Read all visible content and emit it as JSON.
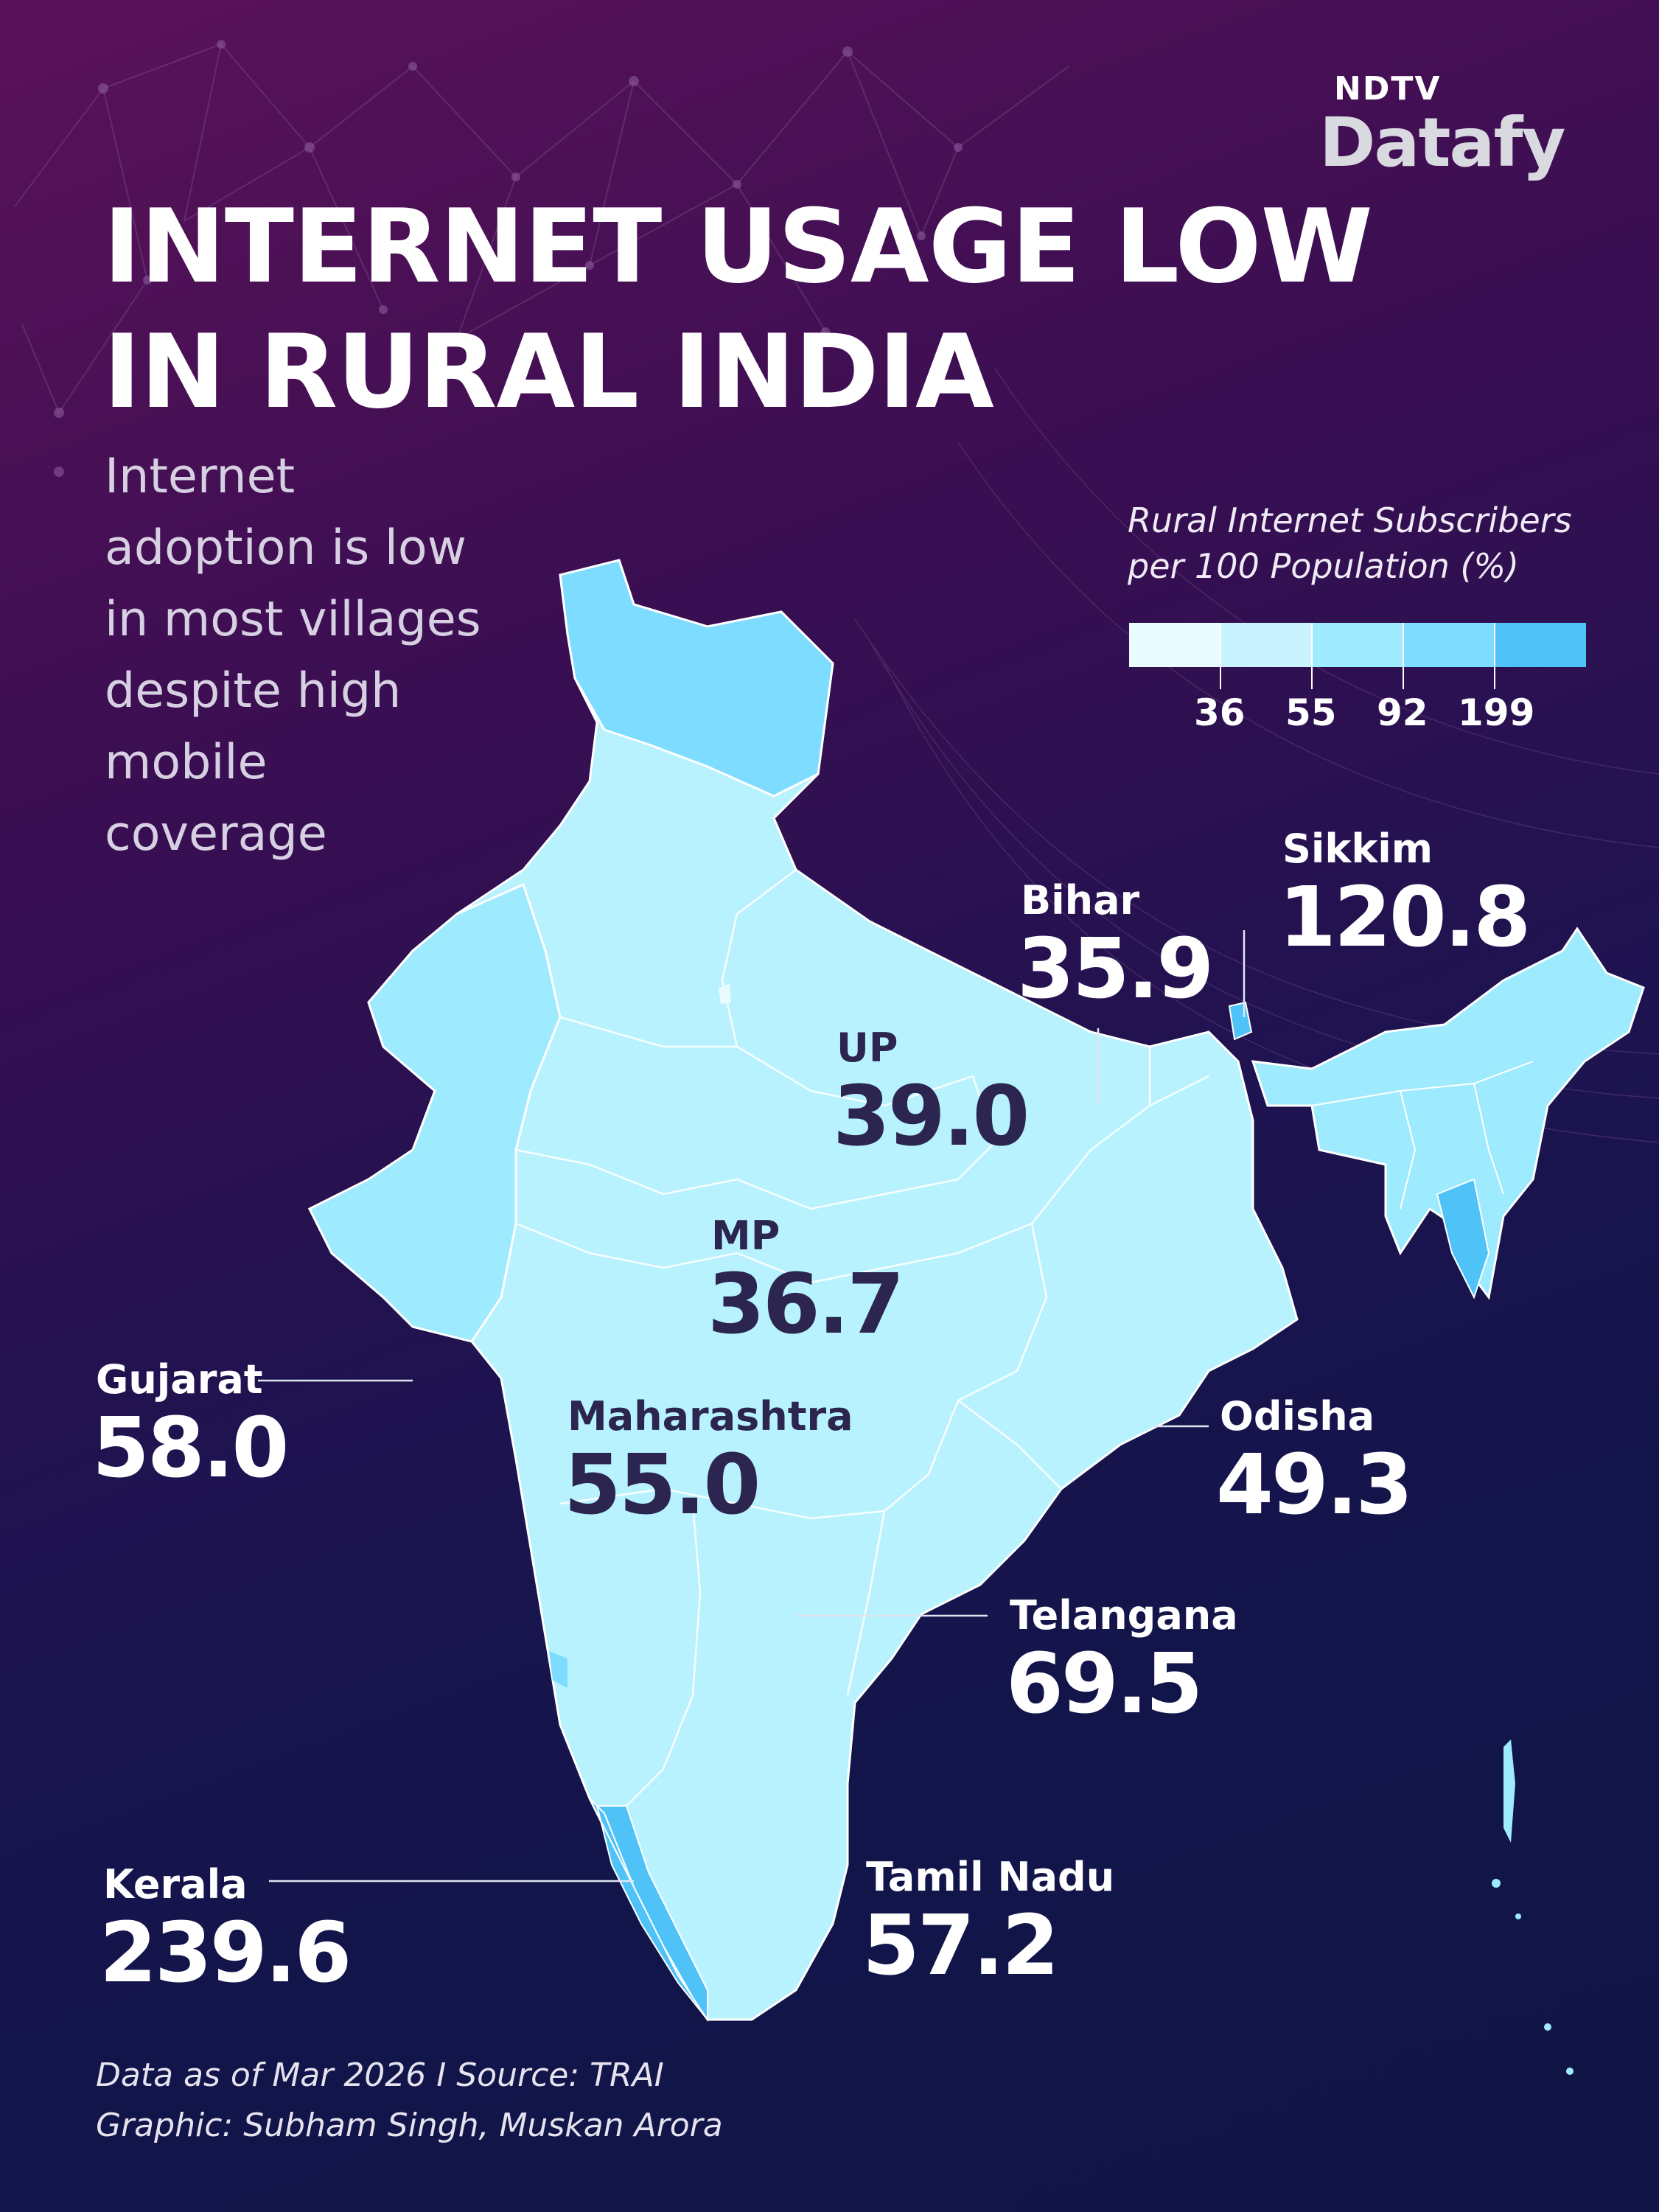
{
  "brand": {
    "top": "NDTV",
    "bottom": "Datafy"
  },
  "title_line1": "INTERNET USAGE LOW",
  "title_line2": "IN RURAL INDIA",
  "subtitle_lines": [
    "Internet",
    "adoption is low",
    "in most villages",
    "despite high",
    "mobile",
    "coverage"
  ],
  "legend": {
    "title_line1": "Rural Internet Subscribers",
    "title_line2": "per 100 Population (%)",
    "breaks": [
      "36",
      "55",
      "92",
      "199"
    ],
    "colors": [
      "#eafbff",
      "#c8f3ff",
      "#9eeaff",
      "#7ddcff",
      "#4fc3f7"
    ]
  },
  "map": {
    "land_color": "#b8f2ff",
    "highlight_color": "#4fc3f7",
    "medium_color": "#7ddcff"
  },
  "labels": {
    "bihar": {
      "name": "Bihar",
      "value": "35.9"
    },
    "sikkim": {
      "name": "Sikkim",
      "value": "120.8"
    },
    "up": {
      "name": "UP",
      "value": "39.0"
    },
    "mp": {
      "name": "MP",
      "value": "36.7"
    },
    "gujarat": {
      "name": "Gujarat",
      "value": "58.0"
    },
    "maharashtra": {
      "name": "Maharashtra",
      "value": "55.0"
    },
    "odisha": {
      "name": "Odisha",
      "value": "49.3"
    },
    "telangana": {
      "name": "Telangana",
      "value": "69.5"
    },
    "kerala": {
      "name": "Kerala",
      "value": "239.6"
    },
    "tamilnadu": {
      "name": "Tamil Nadu",
      "value": "57.2"
    }
  },
  "footer": {
    "source": "Data as of Mar 2026 I Source: TRAI",
    "credit": "Graphic: Subham Singh, Muskan Arora"
  }
}
